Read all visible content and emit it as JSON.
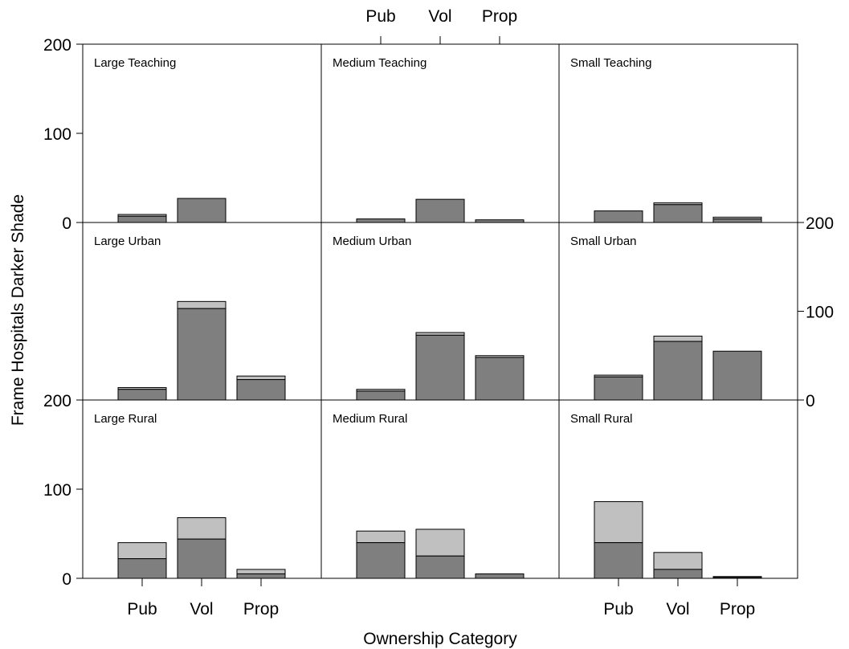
{
  "chart_data": {
    "type": "bar",
    "layout": "trellis 3 rows x 3 columns, stacked bars",
    "xlabel": "Ownership Category",
    "ylabel": "Frame Hospitals Darker Shade",
    "categories": [
      "Pub",
      "Vol",
      "Prop"
    ],
    "ylim": [
      0,
      200
    ],
    "yticks": [
      0,
      100,
      200
    ],
    "colors": {
      "frame": "#7f7f7f",
      "other": "#c0c0c0",
      "border": "#000000"
    },
    "panels": [
      {
        "title": "Large Teaching",
        "frame": [
          7,
          27,
          null
        ],
        "total": [
          9,
          27,
          null
        ]
      },
      {
        "title": "Medium Teaching",
        "frame": [
          4,
          26,
          3
        ],
        "total": [
          4,
          26,
          3
        ]
      },
      {
        "title": "Small Teaching",
        "frame": [
          13,
          20,
          4
        ],
        "total": [
          13,
          22,
          6
        ]
      },
      {
        "title": "Large Urban",
        "frame": [
          12,
          103,
          23
        ],
        "total": [
          14,
          111,
          27
        ]
      },
      {
        "title": "Medium Urban",
        "frame": [
          10,
          73,
          48
        ],
        "total": [
          12,
          76,
          50
        ]
      },
      {
        "title": "Small Urban",
        "frame": [
          26,
          66,
          55
        ],
        "total": [
          28,
          72,
          55
        ]
      },
      {
        "title": "Large Rural",
        "frame": [
          22,
          44,
          5
        ],
        "total": [
          40,
          68,
          10
        ]
      },
      {
        "title": "Medium Rural",
        "frame": [
          40,
          25,
          5
        ],
        "total": [
          53,
          55,
          5
        ]
      },
      {
        "title": "Small Rural",
        "frame": [
          40,
          10,
          1
        ],
        "total": [
          86,
          29,
          2
        ]
      }
    ]
  }
}
